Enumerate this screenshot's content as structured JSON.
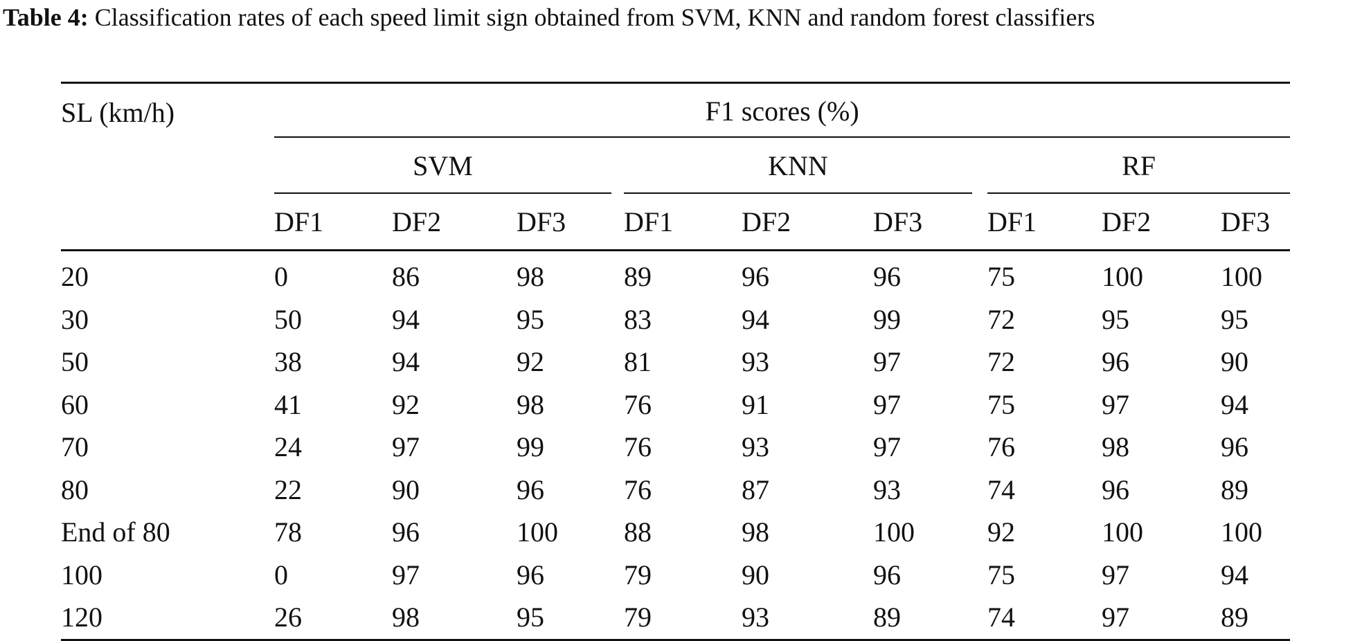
{
  "caption": {
    "label": "Table 4:",
    "text": " Classification rates of each speed limit sign obtained from SVM, KNN and random forest classifiers"
  },
  "table": {
    "row_header": "SL (km/h)",
    "spanning_header": "F1 scores (%)",
    "groups": [
      "SVM",
      "KNN",
      "RF"
    ],
    "subcolumns": [
      "DF1",
      "DF2",
      "DF3",
      "DF1",
      "DF2",
      "DF3",
      "DF1",
      "DF2",
      "DF3"
    ],
    "rows": [
      {
        "label": "20",
        "values": [
          "0",
          "86",
          "98",
          "89",
          "96",
          "96",
          "75",
          "100",
          "100"
        ]
      },
      {
        "label": "30",
        "values": [
          "50",
          "94",
          "95",
          "83",
          "94",
          "99",
          "72",
          "95",
          "95"
        ]
      },
      {
        "label": "50",
        "values": [
          "38",
          "94",
          "92",
          "81",
          "93",
          "97",
          "72",
          "96",
          "90"
        ]
      },
      {
        "label": "60",
        "values": [
          "41",
          "92",
          "98",
          "76",
          "91",
          "97",
          "75",
          "97",
          "94"
        ]
      },
      {
        "label": "70",
        "values": [
          "24",
          "97",
          "99",
          "76",
          "93",
          "97",
          "76",
          "98",
          "96"
        ]
      },
      {
        "label": "80",
        "values": [
          "22",
          "90",
          "96",
          "76",
          "87",
          "93",
          "74",
          "96",
          "89"
        ]
      },
      {
        "label": "End of 80",
        "values": [
          "78",
          "96",
          "100",
          "88",
          "98",
          "100",
          "92",
          "100",
          "100"
        ]
      },
      {
        "label": "100",
        "values": [
          "0",
          "97",
          "96",
          "79",
          "90",
          "96",
          "75",
          "97",
          "94"
        ]
      },
      {
        "label": "120",
        "values": [
          "26",
          "98",
          "95",
          "79",
          "93",
          "89",
          "74",
          "97",
          "89"
        ]
      }
    ]
  }
}
